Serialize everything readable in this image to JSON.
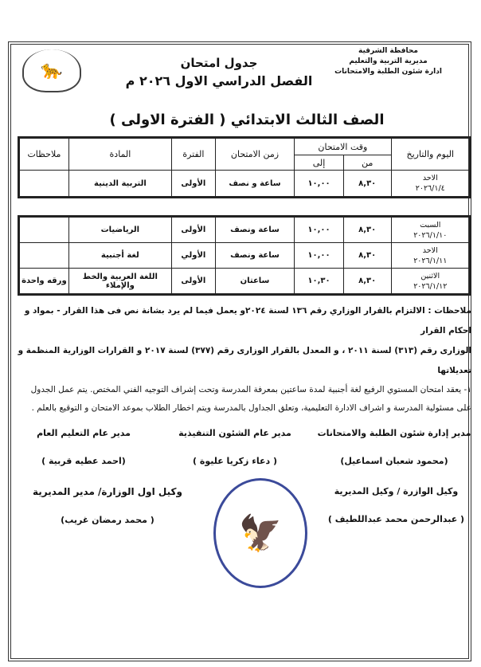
{
  "header": {
    "right_lines": [
      "محافظة الشرقية",
      "مديرية التربية والتعليم",
      "ادارة شئون الطلبة والامتحانات"
    ],
    "title_line1": "جدول امتحان",
    "title_line2": "الفصل الدراسي الاول ٢٠٢٦ م",
    "class_title": "الصف الثالث الابتدائي ( الفترة الاولى )"
  },
  "table": {
    "headers": {
      "date": "اليوم والتاريخ",
      "exam_time": "وقت الامتحان",
      "from": "من",
      "to": "إلى",
      "duration": "زمن الامتحان",
      "period": "الفترة",
      "subject": "المادة",
      "notes": "ملاحظات"
    },
    "rows": [
      {
        "day": "الاحد",
        "date": "٢٠٢٦/١/٤",
        "from": "٨,٣٠",
        "to": "١٠,٠٠",
        "duration": "ساعة و نصف",
        "period": "الأولى",
        "subject": "التربية الدينية",
        "notes": ""
      },
      {
        "day": "السبت",
        "date": "٢٠٢٦/١/١٠",
        "from": "٨,٣٠",
        "to": "١٠,٠٠",
        "duration": "ساعة ونصف",
        "period": "الأولى",
        "subject": "الرياضيات",
        "notes": ""
      },
      {
        "day": "الاحد",
        "date": "٢٠٢٦/١/١١",
        "from": "٨,٣٠",
        "to": "١٠,٠٠",
        "duration": "ساعة ونصف",
        "period": "الأولي",
        "subject": "لغة أجنبية",
        "notes": ""
      },
      {
        "day": "الاثنين",
        "date": "٢٠٢٦/١/١٢",
        "from": "٨,٣٠",
        "to": "١٠,٣٠",
        "duration": "ساعتان",
        "period": "الأولى",
        "subject": "اللغة العربية والخط والإملاء",
        "notes": "ورقه واحدة"
      }
    ]
  },
  "notes": {
    "line1": "ملاحظات : الالتزام بالقرار الوزاري رقم ١٣٦ لسنة ٢٠٢٤و يعمل فيما لم يرد بشانة نص فى هذا القرار - بمواد و احكام القرار",
    "line2": "الوزارى رقم (٣١٣) لسنة ٢٠١١ ، و المعدل بالقرار الوزارى رقم (٣٧٧) لسنة ٢٠١٧ و القرارات الوزارية المنظمة و تعديلاتها",
    "item1": "١- يعقد امتحان المستوي الرفيع لغة أجنبية لمدة ساعتين بمعرفة المدرسة وتحت إشراف التوجيه الفني المختص. يتم عمل الجدول على مسئولية المدرسة و اشراف الادارة التعليمية، وتعلق الجداول بالمدرسة ويتم اخطار الطلاب بموعد الامتحان و التوقيع بالعلم ."
  },
  "signatures": [
    {
      "title": "مدير إدارة شئون الطلبة والامتحانات",
      "name": "(محمود شعبان اسماعيل)"
    },
    {
      "title": "مدير عام الشئون التنفيذية",
      "name": "( دعاء زكريا عليوة )"
    },
    {
      "title": "مدير عام التعليم العام",
      "name": "(احمد عطيه قربية )"
    },
    {
      "title": "وكيل الوازرة / وكيل المديرية",
      "name": "( عبدالرحمن محمد عبداللطيف )"
    },
    {
      "title": "وكيل اول الوزارة/ مدير المديرية",
      "name": "( محمد رمضان غريب)"
    }
  ]
}
